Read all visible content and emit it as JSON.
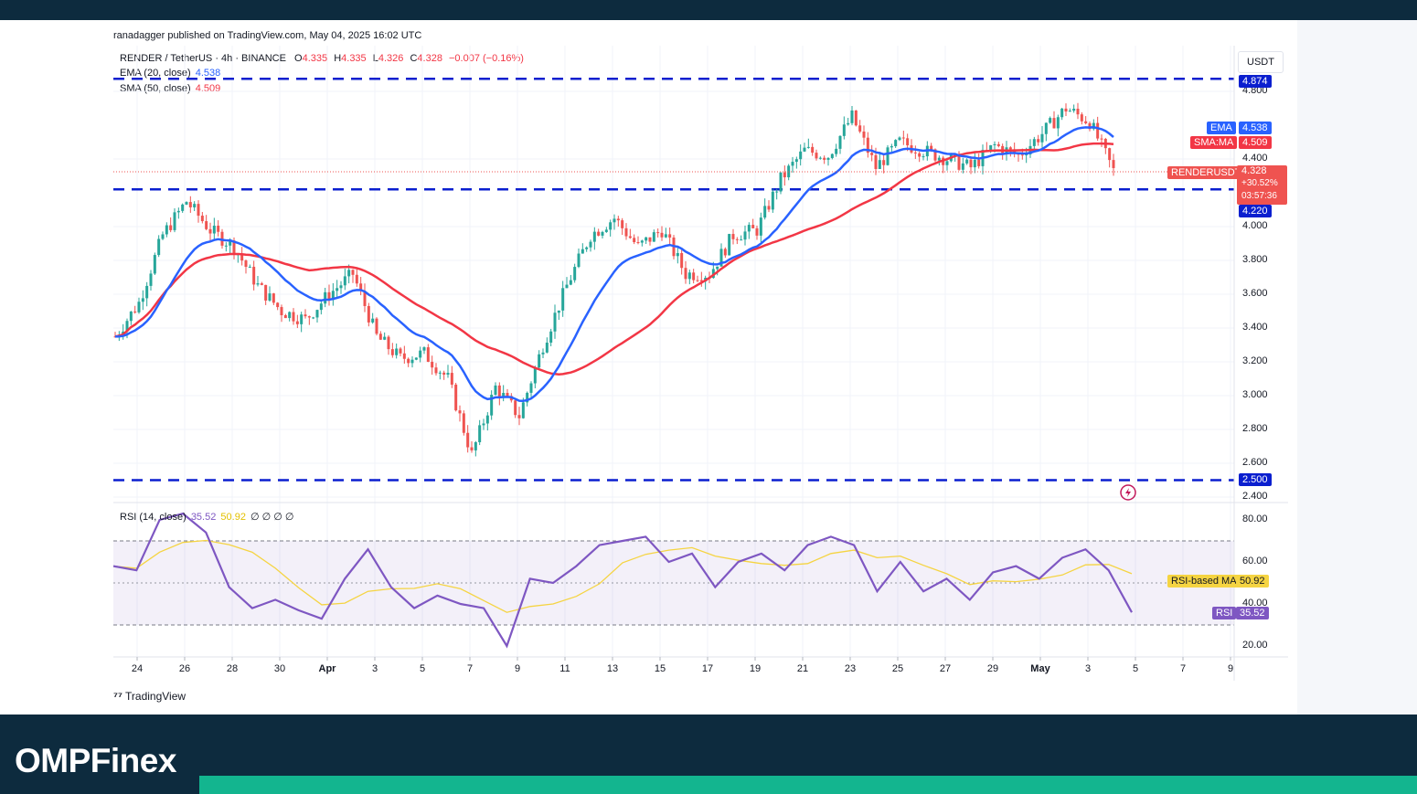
{
  "publisher_line": "ranadagger published on TradingView.com, May 04, 2025 16:02 UTC",
  "symbol_line": {
    "title": "RENDER / TetherUS · 4h · BINANCE",
    "o_label": "O",
    "o": "4.335",
    "h_label": "H",
    "h": "4.335",
    "l_label": "L",
    "l": "4.326",
    "c_label": "C",
    "c": "4.328",
    "change": "−0.007 (−0.16%)"
  },
  "ema_legend": {
    "label": "EMA (20, close)",
    "value": "4.538"
  },
  "sma_legend": {
    "label": "SMA (50, close)",
    "value": "4.509"
  },
  "rsi_legend": {
    "label": "RSI (14, close)",
    "v1": "35.52",
    "v2": "50.92",
    "rest": "∅ ∅ ∅ ∅"
  },
  "currency": "USDT",
  "tags": {
    "resistance": "4.874",
    "ema": "EMA",
    "ema_val": "4.538",
    "sma": "SMA:MA",
    "sma_val": "4.509",
    "ticker": "RENDERUSDT",
    "price": "4.328",
    "pct": "+30.52%",
    "countdown": "03:57:36",
    "support": "4.220",
    "low_support": "2.500",
    "rsi_ma": "RSI-based MA",
    "rsi_ma_val": "50.92",
    "rsi": "RSI",
    "rsi_val": "35.52"
  },
  "tradingview_mark": "TradingView",
  "brand": "OMPFinex",
  "colors": {
    "up": "#26a69a",
    "down": "#ef5350",
    "ema": "#2962ff",
    "sma": "#f23645",
    "rsi": "#7e57c2",
    "rsi_ma": "#f5d442",
    "levels": "#0b1fcf",
    "brand_green": "#13b58f"
  },
  "chart_data": [
    {
      "type": "candlestick",
      "title": "RENDER / TetherUS · 4h · BINANCE",
      "x_tick_labels": [
        "24",
        "26",
        "28",
        "30",
        "Apr",
        "3",
        "5",
        "7",
        "9",
        "11",
        "13",
        "15",
        "17",
        "19",
        "21",
        "23",
        "25",
        "27",
        "29",
        "May",
        "3",
        "5",
        "7",
        "9"
      ],
      "y_tick_labels": [
        "4.800",
        "4.400",
        "4.000",
        "3.800",
        "3.600",
        "3.400",
        "3.200",
        "3.000",
        "2.800",
        "2.600",
        "2.400"
      ],
      "ylim": [
        2.38,
        4.95
      ],
      "horizontal_levels": [
        4.874,
        4.22,
        2.5
      ],
      "last_price": 4.328,
      "series": [
        {
          "name": "EMA (20, close)",
          "last": 4.538
        },
        {
          "name": "SMA (50, close)",
          "last": 4.509
        }
      ],
      "price_path": [
        {
          "date": "Mar 23",
          "close": 3.35
        },
        {
          "date": "Mar 24",
          "close": 3.55
        },
        {
          "date": "Mar 25",
          "close": 3.95
        },
        {
          "date": "Mar 26",
          "close": 4.15
        },
        {
          "date": "Mar 27",
          "close": 3.98
        },
        {
          "date": "Mar 28",
          "close": 3.88
        },
        {
          "date": "Mar 29",
          "close": 3.65
        },
        {
          "date": "Mar 30",
          "close": 3.5
        },
        {
          "date": "Mar 31",
          "close": 3.45
        },
        {
          "date": "Apr 1",
          "close": 3.6
        },
        {
          "date": "Apr 2",
          "close": 3.72
        },
        {
          "date": "Apr 3",
          "close": 3.35
        },
        {
          "date": "Apr 4",
          "close": 3.22
        },
        {
          "date": "Apr 5",
          "close": 3.25
        },
        {
          "date": "Apr 6",
          "close": 3.1
        },
        {
          "date": "Apr 7",
          "close": 2.65
        },
        {
          "date": "Apr 8",
          "close": 3.05
        },
        {
          "date": "Apr 9",
          "close": 2.88
        },
        {
          "date": "Apr 10",
          "close": 3.3
        },
        {
          "date": "Apr 11",
          "close": 3.65
        },
        {
          "date": "Apr 12",
          "close": 3.95
        },
        {
          "date": "Apr 13",
          "close": 4.05
        },
        {
          "date": "Apr 14",
          "close": 3.88
        },
        {
          "date": "Apr 15",
          "close": 3.98
        },
        {
          "date": "Apr 16",
          "close": 3.72
        },
        {
          "date": "Apr 17",
          "close": 3.72
        },
        {
          "date": "Apr 18",
          "close": 3.95
        },
        {
          "date": "Apr 19",
          "close": 3.98
        },
        {
          "date": "Apr 20",
          "close": 4.28
        },
        {
          "date": "Apr 21",
          "close": 4.45
        },
        {
          "date": "Apr 22",
          "close": 4.42
        },
        {
          "date": "Apr 23",
          "close": 4.65
        },
        {
          "date": "Apr 24",
          "close": 4.35
        },
        {
          "date": "Apr 25",
          "close": 4.5
        },
        {
          "date": "Apr 26",
          "close": 4.45
        },
        {
          "date": "Apr 27",
          "close": 4.4
        },
        {
          "date": "Apr 28",
          "close": 4.35
        },
        {
          "date": "Apr 29",
          "close": 4.48
        },
        {
          "date": "Apr 30",
          "close": 4.42
        },
        {
          "date": "May 1",
          "close": 4.55
        },
        {
          "date": "May 2",
          "close": 4.7
        },
        {
          "date": "May 3",
          "close": 4.62
        },
        {
          "date": "May 4",
          "close": 4.33
        }
      ]
    },
    {
      "type": "line",
      "title": "RSI (14, close)",
      "y_tick_labels": [
        "80.00",
        "60.00",
        "40.00",
        "20.00"
      ],
      "ylim": [
        13,
        86
      ],
      "bands": [
        70,
        30
      ],
      "series": [
        {
          "name": "RSI",
          "last": 35.52,
          "values": [
            58,
            56,
            80,
            83,
            74,
            48,
            38,
            42,
            37,
            33,
            52,
            66,
            48,
            38,
            44,
            40,
            38,
            20,
            52,
            50,
            58,
            68,
            70,
            72,
            60,
            64,
            48,
            60,
            64,
            56,
            68,
            72,
            68,
            46,
            60,
            46,
            52,
            42,
            55,
            58,
            52,
            62,
            66,
            56,
            36
          ]
        },
        {
          "name": "RSI-based MA",
          "last": 50.92
        }
      ]
    }
  ]
}
